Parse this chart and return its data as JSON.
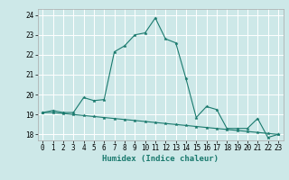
{
  "xlabel": "Humidex (Indice chaleur)",
  "line_color": "#1a7a6e",
  "bg_color": "#cde8e8",
  "grid_color": "#ffffff",
  "ylim": [
    17.7,
    24.3
  ],
  "xlim": [
    -0.5,
    23.5
  ],
  "yticks": [
    18,
    19,
    20,
    21,
    22,
    23,
    24
  ],
  "xticks": [
    0,
    1,
    2,
    3,
    4,
    5,
    6,
    7,
    8,
    9,
    10,
    11,
    12,
    13,
    14,
    15,
    16,
    17,
    18,
    19,
    20,
    21,
    22,
    23
  ],
  "series1_x": [
    0,
    1,
    2,
    3,
    4,
    5,
    6,
    7,
    8,
    9,
    10,
    11,
    12,
    13,
    14,
    15,
    16,
    17,
    18,
    19,
    20,
    21,
    22,
    23
  ],
  "series1_y": [
    19.1,
    19.2,
    19.1,
    19.1,
    19.85,
    19.7,
    19.75,
    22.15,
    22.45,
    23.0,
    23.1,
    23.85,
    22.8,
    22.6,
    20.8,
    18.85,
    19.4,
    19.25,
    18.3,
    18.3,
    18.3,
    18.8,
    17.85,
    18.0
  ],
  "series2_x": [
    0,
    1,
    2,
    3,
    4,
    5,
    6,
    7,
    8,
    9,
    10,
    11,
    12,
    13,
    14,
    15,
    16,
    17,
    18,
    19,
    20,
    21,
    22,
    23
  ],
  "series2_y": [
    19.1,
    19.1,
    19.05,
    19.0,
    18.95,
    18.9,
    18.85,
    18.8,
    18.75,
    18.7,
    18.65,
    18.6,
    18.55,
    18.5,
    18.45,
    18.4,
    18.35,
    18.3,
    18.25,
    18.2,
    18.15,
    18.1,
    18.05,
    18.0
  ]
}
